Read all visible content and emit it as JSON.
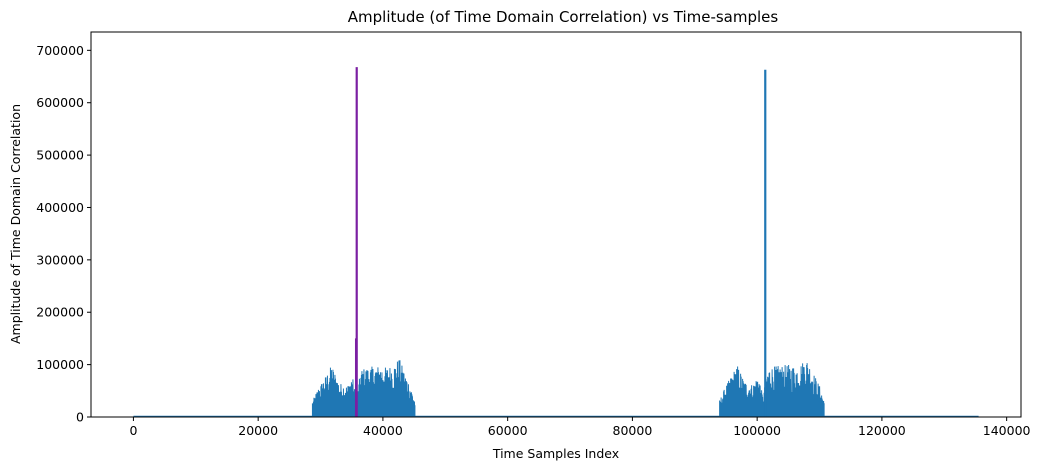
{
  "chart_data": {
    "type": "line",
    "title": "Amplitude (of Time Domain Correlation) vs Time-samples",
    "xlabel": "Time Samples Index",
    "ylabel": "Amplitude of Time Domain Correlation",
    "xlim": [
      -6800,
      142300
    ],
    "ylim": [
      0,
      735000
    ],
    "xticks": [
      0,
      20000,
      40000,
      60000,
      80000,
      100000,
      120000,
      140000
    ],
    "xtick_labels": [
      "0",
      "20000",
      "40000",
      "60000",
      "80000",
      "100000",
      "120000",
      "140000"
    ],
    "yticks": [
      0,
      100000,
      200000,
      300000,
      400000,
      500000,
      600000,
      700000
    ],
    "ytick_labels": [
      "0",
      "100000",
      "200000",
      "300000",
      "400000",
      "500000",
      "600000",
      "700000"
    ],
    "grid": false,
    "series": [
      {
        "color": "#1f77b4",
        "x_start": 0,
        "x_end": 135500,
        "baseline": 800,
        "bursts": [
          {
            "x_start": 28700,
            "x_end": 45200,
            "envelope": [
              [
                28700,
                30000
              ],
              [
                29600,
                55000
              ],
              [
                30800,
                78000
              ],
              [
                31800,
                100000
              ],
              [
                33000,
                65000
              ],
              [
                34300,
                60000
              ],
              [
                35100,
                80000
              ],
              [
                35700,
                35000
              ],
              [
                36500,
                92000
              ],
              [
                38000,
                96000
              ],
              [
                39500,
                98000
              ],
              [
                40500,
                95000
              ],
              [
                41800,
                100000
              ],
              [
                42600,
                113000
              ],
              [
                43500,
                85000
              ],
              [
                44400,
                60000
              ],
              [
                45200,
                30000
              ]
            ]
          },
          {
            "x_start": 93900,
            "x_end": 110800,
            "envelope": [
              [
                93900,
                30000
              ],
              [
                94800,
                55000
              ],
              [
                95900,
                80000
              ],
              [
                96800,
                100000
              ],
              [
                98000,
                68000
              ],
              [
                99300,
                62000
              ],
              [
                100200,
                82000
              ],
              [
                100900,
                40000
              ],
              [
                101800,
                95000
              ],
              [
                103500,
                98000
              ],
              [
                105000,
                100000
              ],
              [
                106500,
                96000
              ],
              [
                107900,
                113000
              ],
              [
                109000,
                85000
              ],
              [
                110000,
                60000
              ],
              [
                110800,
                30000
              ]
            ]
          }
        ],
        "peaks": [
          {
            "x": 101300,
            "y": 663000
          }
        ]
      },
      {
        "color": "#7b1fa2",
        "peaks": [
          {
            "x": 35800,
            "y": 668000
          }
        ]
      }
    ],
    "extra_marks": [
      {
        "x": 35650,
        "y": 150000,
        "color": "#7b1fa2"
      }
    ]
  }
}
